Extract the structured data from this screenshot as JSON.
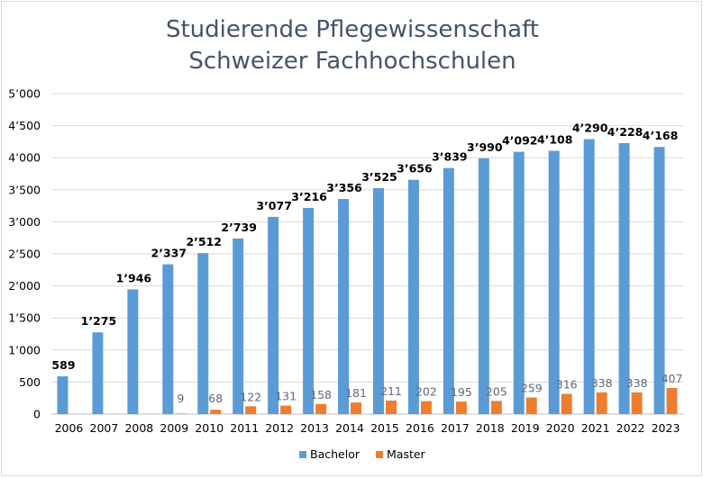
{
  "chart_data": {
    "type": "bar",
    "title_lines": [
      "Studierende Pflegewissenschaft",
      "Schweizer Fachhochschulen"
    ],
    "xlabel": "",
    "ylabel": "",
    "categories": [
      "2006",
      "2007",
      "2008",
      "2009",
      "2010",
      "2011",
      "2012",
      "2013",
      "2014",
      "2015",
      "2016",
      "2017",
      "2018",
      "2019",
      "2020",
      "2021",
      "2022",
      "2023"
    ],
    "series": [
      {
        "name": "Bachelor",
        "color": "#5b9bd5",
        "values": [
          589,
          1275,
          1946,
          2337,
          2512,
          2739,
          3077,
          3216,
          3356,
          3525,
          3656,
          3839,
          3990,
          4092,
          4108,
          4290,
          4228,
          4168
        ],
        "labels": [
          "589",
          "1’275",
          "1’946",
          "2’337",
          "2’512",
          "2’739",
          "3’077",
          "3’216",
          "3’356",
          "3’525",
          "3’656",
          "3’839",
          "3’990",
          "4’092",
          "4’108",
          "4’290",
          "4’228",
          "4’168"
        ]
      },
      {
        "name": "Master",
        "color": "#ed7d31",
        "values": [
          null,
          null,
          null,
          9,
          68,
          122,
          131,
          158,
          181,
          211,
          202,
          195,
          205,
          259,
          316,
          338,
          338,
          407
        ],
        "labels": [
          "",
          "",
          "",
          "9",
          "68",
          "122",
          "131",
          "158",
          "181",
          "211",
          "202",
          "195",
          "205",
          "259",
          "316",
          "338",
          "338",
          "407"
        ]
      }
    ],
    "ylim": [
      0,
      5000
    ],
    "yticks": [
      0,
      500,
      1000,
      1500,
      2000,
      2500,
      3000,
      3500,
      4000,
      4500,
      5000
    ],
    "ytick_labels": [
      "0",
      "500",
      "1’000",
      "1’500",
      "2’000",
      "2’500",
      "3’000",
      "3’500",
      "4’000",
      "4’500",
      "5’000"
    ],
    "grid": true,
    "legend": "bottom"
  }
}
